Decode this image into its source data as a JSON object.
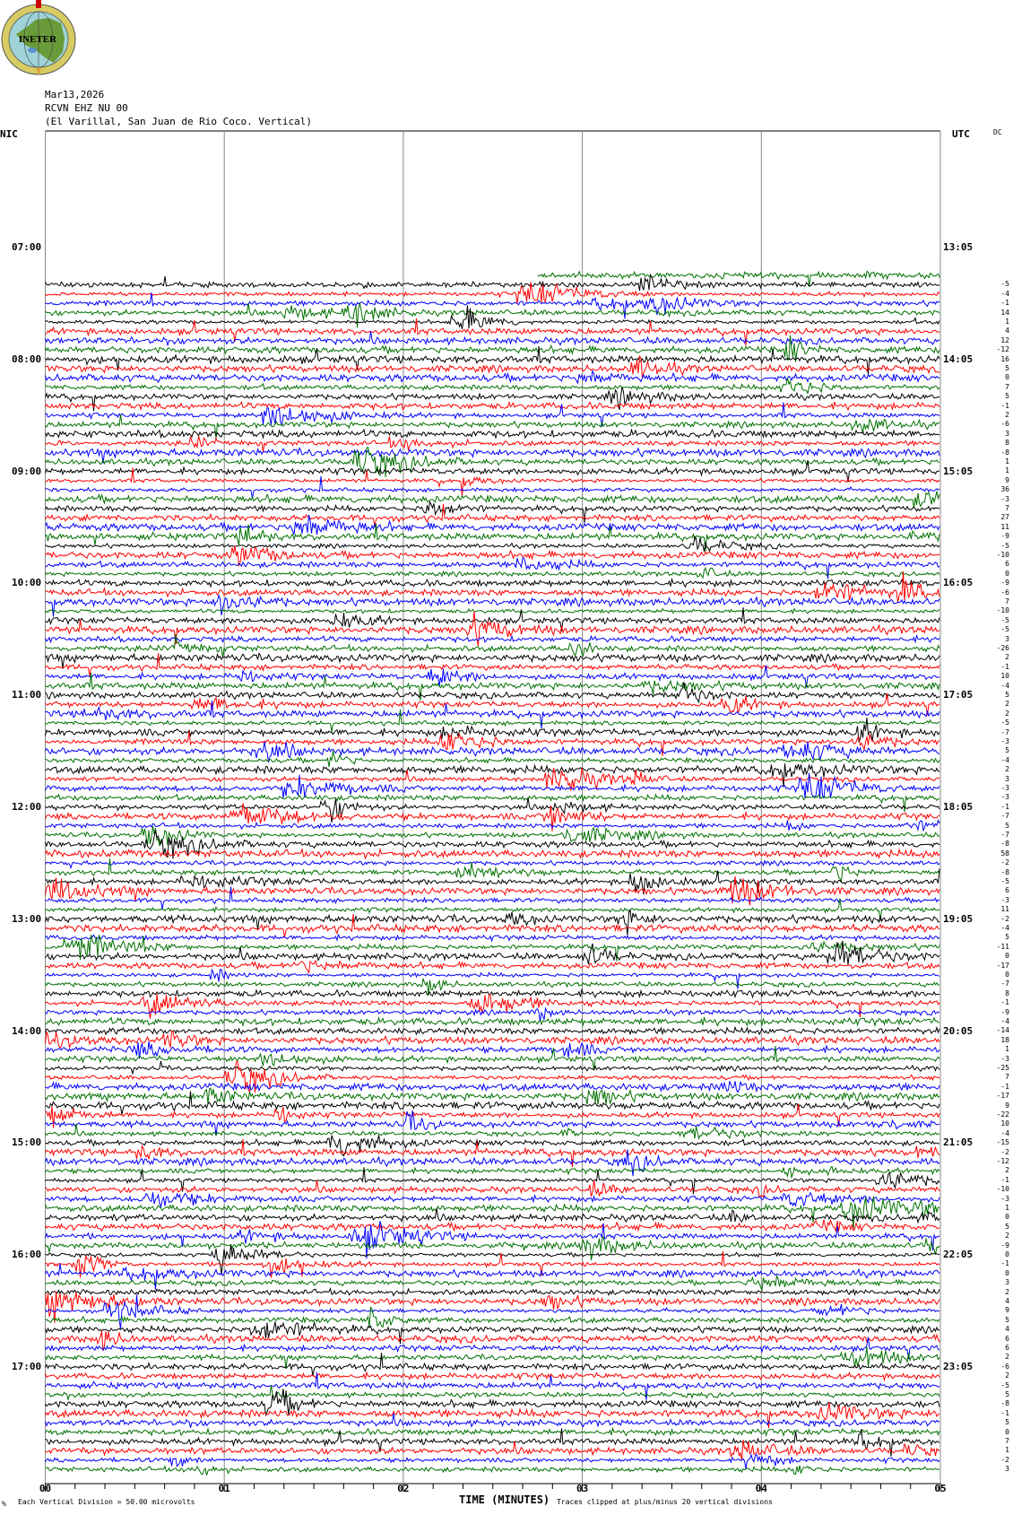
{
  "logo": {
    "text": "INETER"
  },
  "header": {
    "date": "Mar13,2026",
    "channel": "RCVN EHZ NU 00",
    "location": "(El Varillal, San Juan de Rio Coco. Vertical)"
  },
  "left_timezone": "NIC",
  "right_timezone": "UTC",
  "dc_label": "DC",
  "chart_data": {
    "type": "line",
    "plot": "helicorder",
    "minutes_per_line": 5,
    "trace_colors": [
      "#000000",
      "#ff0000",
      "#0000ff",
      "#007000"
    ],
    "left_time_labels": [
      "07:00",
      "08:00",
      "09:00",
      "10:00",
      "11:00",
      "12:00",
      "13:00",
      "14:00",
      "15:00",
      "16:00",
      "17:00"
    ],
    "right_time_labels": [
      "13:05",
      "14:05",
      "15:05",
      "16:05",
      "17:05",
      "18:05",
      "19:05",
      "20:05",
      "21:05",
      "22:05",
      "23:05"
    ],
    "x_ticks": [
      "00",
      "01",
      "02",
      "03",
      "04",
      "05"
    ],
    "xlabel": "TIME (MINUTES)",
    "xlim": [
      0,
      5
    ],
    "trace_dc_offsets": [
      -5,
      -4,
      -1,
      14,
      1,
      4,
      12,
      -12,
      16,
      5,
      0,
      7,
      5,
      -1,
      2,
      -6,
      3,
      8,
      -8,
      1,
      1,
      9,
      36,
      -3,
      7,
      27,
      11,
      -9,
      -5,
      -10,
      6,
      0,
      -9,
      -6,
      7,
      -10,
      -5,
      -5,
      3,
      -26,
      2,
      -1,
      10,
      -4,
      5,
      2,
      2,
      -5,
      -7,
      -3,
      5,
      -4,
      2,
      3,
      -3,
      -3,
      -1,
      -7,
      5,
      -7,
      -8,
      58,
      -2,
      -8,
      -5,
      6,
      -3,
      11,
      -2,
      -4,
      5,
      -11,
      0,
      -17,
      0,
      -7,
      8,
      -1,
      -9,
      -4,
      -14,
      18,
      1,
      -3,
      -25,
      7,
      -1,
      -17,
      9,
      -22,
      10,
      -4,
      -15,
      -2,
      -12,
      2,
      -1,
      -10,
      -3,
      1,
      0,
      5,
      2,
      -9,
      0,
      -1,
      0,
      3,
      2,
      4,
      9,
      5,
      4,
      6,
      6,
      2,
      -6,
      2,
      -5,
      5,
      -8,
      -1,
      5,
      0,
      7,
      1,
      -2,
      3
    ]
  },
  "footer": {
    "scale_text": "Each Vertical Division =    50.00 microvolts",
    "clip_text": "Traces clipped at plus/minus 20 vertical divisions",
    "corner_mark": "%"
  }
}
